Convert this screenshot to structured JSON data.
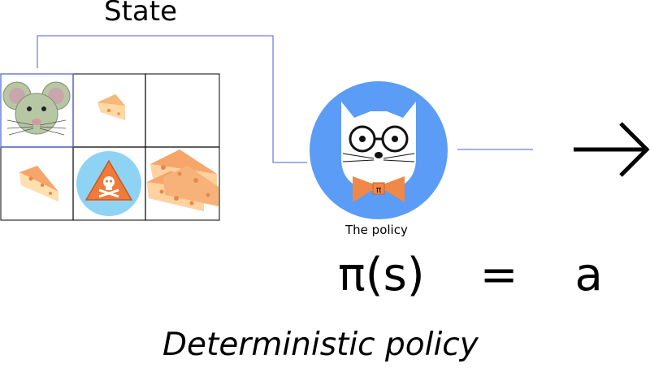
{
  "diagram": {
    "title": "State",
    "policy_label": "The policy",
    "equation": {
      "lhs": "π(s)",
      "op": "=",
      "rhs": "a"
    },
    "caption": "Deterministic policy",
    "grid": {
      "rows": 2,
      "cols": 3,
      "cells": [
        [
          "mouse",
          "cheese",
          "empty"
        ],
        [
          "cheese",
          "poison",
          "big-cheese"
        ]
      ]
    },
    "policy_badge": "π",
    "icons": [
      "mouse-icon",
      "cheese-icon",
      "poison-icon",
      "big-cheese-icon",
      "policy-mouse-icon",
      "arrow-right-icon"
    ],
    "colors": {
      "connector": "#4a5fd6",
      "policy_circle": "#5b9cf6",
      "bowtie": "#f0884a",
      "poison_circle": "#8fd3f4",
      "poison_triangle": "#f07a3a",
      "cheese": "#f6a66a",
      "mouse": "#b7c7a4"
    }
  }
}
